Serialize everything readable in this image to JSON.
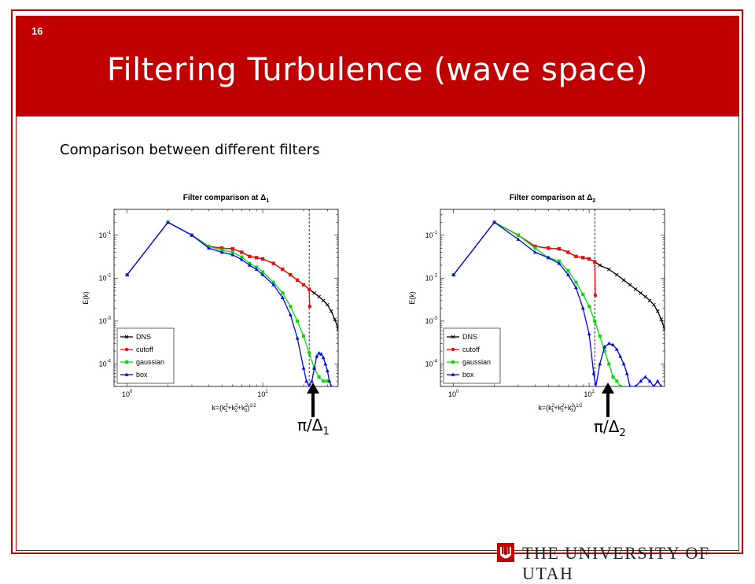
{
  "slide": {
    "number": "16",
    "title": "Filtering Turbulence (wave space)",
    "subtitle": "Comparison between different filters",
    "footer": "THE UNIVERSITY OF UTAH",
    "colors": {
      "brand_red": "#c00000",
      "dns": "#000000",
      "cutoff": "#ff0000",
      "gaussian": "#00dd00",
      "box": "#0000ff"
    }
  },
  "chart_data": [
    {
      "type": "line",
      "title": "Filter comparison at Δ",
      "title_sub": "1",
      "ylabel": "E(k)",
      "xlabel": "k=(k",
      "xlabel_full": "k=(k1^2+k2^2+k3^2)^1/2",
      "x_scale": "log",
      "y_scale": "log",
      "xlim": [
        0.8,
        36
      ],
      "ylim": [
        3e-05,
        0.4
      ],
      "x_ticks": [
        {
          "v": 1,
          "label": "10",
          "exp": "0"
        },
        {
          "v": 10,
          "label": "10",
          "exp": "1"
        }
      ],
      "y_ticks": [
        {
          "v": 0.1,
          "label": "10",
          "exp": "-1"
        },
        {
          "v": 0.01,
          "label": "10",
          "exp": "-2"
        },
        {
          "v": 0.001,
          "label": "10",
          "exp": "-3"
        },
        {
          "v": 0.0001,
          "label": "10",
          "exp": "-4"
        }
      ],
      "cutoff_k": 22,
      "legend_position": "bottom-left",
      "series": [
        {
          "name": "DNS",
          "color": "#000000",
          "marker": "x",
          "x": [
            1,
            2,
            3,
            4,
            5,
            6,
            7,
            8,
            9,
            10,
            12,
            14,
            16,
            18,
            20,
            22,
            24,
            26,
            28,
            30,
            32,
            34,
            36
          ],
          "y": [
            0.012,
            0.2,
            0.1,
            0.055,
            0.05,
            0.048,
            0.04,
            0.032,
            0.03,
            0.028,
            0.022,
            0.016,
            0.012,
            0.009,
            0.007,
            0.0055,
            0.0045,
            0.0037,
            0.003,
            0.0024,
            0.0017,
            0.0011,
            0.00065
          ]
        },
        {
          "name": "cutoff",
          "color": "#ff0000",
          "marker": "o",
          "x": [
            1,
            2,
            3,
            4,
            5,
            6,
            7,
            8,
            9,
            10,
            12,
            14,
            16,
            18,
            20,
            22,
            22.2
          ],
          "y": [
            0.012,
            0.2,
            0.1,
            0.055,
            0.05,
            0.048,
            0.04,
            0.032,
            0.03,
            0.028,
            0.022,
            0.016,
            0.012,
            0.009,
            0.007,
            0.0055,
            0.0022
          ]
        },
        {
          "name": "gaussian",
          "color": "#00dd00",
          "marker": "s",
          "x": [
            1,
            2,
            3,
            4,
            5,
            6,
            7,
            8,
            9,
            10,
            12,
            14,
            16,
            18,
            20,
            22,
            24,
            26,
            28,
            30
          ],
          "y": [
            0.012,
            0.2,
            0.1,
            0.055,
            0.045,
            0.04,
            0.031,
            0.022,
            0.018,
            0.014,
            0.008,
            0.0045,
            0.0022,
            0.001,
            0.00045,
            0.00018,
            8e-05,
            5e-05,
            4e-05,
            4e-05
          ]
        },
        {
          "name": "box",
          "color": "#0000ff",
          "marker": "^",
          "x": [
            1,
            2,
            3,
            4,
            5,
            6,
            7,
            8,
            9,
            10,
            12,
            14,
            16,
            18,
            20,
            21,
            22,
            23,
            24,
            25,
            26,
            27,
            28,
            29,
            30,
            31,
            32
          ],
          "y": [
            0.012,
            0.2,
            0.1,
            0.05,
            0.04,
            0.035,
            0.027,
            0.02,
            0.016,
            0.012,
            0.007,
            0.0035,
            0.0014,
            0.0004,
            8e-05,
            4e-05,
            3e-05,
            4e-05,
            8e-05,
            0.00015,
            0.00018,
            0.00017,
            0.00014,
            0.0001,
            7e-05,
            4e-05,
            3e-05
          ]
        }
      ]
    },
    {
      "type": "line",
      "title": "Filter comparison at Δ",
      "title_sub": "2",
      "ylabel": "E(k)",
      "xlabel": "k=(k",
      "xlabel_full": "k=(k1^2+k2^2+k3^2)^1/2",
      "x_scale": "log",
      "y_scale": "log",
      "xlim": [
        0.8,
        36
      ],
      "ylim": [
        3e-05,
        0.4
      ],
      "x_ticks": [
        {
          "v": 1,
          "label": "10",
          "exp": "0"
        },
        {
          "v": 10,
          "label": "10",
          "exp": "1"
        }
      ],
      "y_ticks": [
        {
          "v": 0.1,
          "label": "10",
          "exp": "-1"
        },
        {
          "v": 0.01,
          "label": "10",
          "exp": "-2"
        },
        {
          "v": 0.001,
          "label": "10",
          "exp": "-3"
        },
        {
          "v": 0.0001,
          "label": "10",
          "exp": "-4"
        }
      ],
      "cutoff_k": 11,
      "legend_position": "bottom-left",
      "series": [
        {
          "name": "DNS",
          "color": "#000000",
          "marker": "x",
          "x": [
            1,
            2,
            3,
            4,
            5,
            6,
            7,
            8,
            9,
            10,
            11,
            12,
            14,
            16,
            18,
            20,
            22,
            24,
            26,
            28,
            30,
            32,
            34,
            36
          ],
          "y": [
            0.012,
            0.2,
            0.1,
            0.055,
            0.05,
            0.048,
            0.04,
            0.032,
            0.03,
            0.028,
            0.024,
            0.02,
            0.016,
            0.012,
            0.009,
            0.007,
            0.0055,
            0.0045,
            0.0037,
            0.003,
            0.0024,
            0.0017,
            0.0011,
            0.00065
          ]
        },
        {
          "name": "cutoff",
          "color": "#ff0000",
          "marker": "o",
          "x": [
            1,
            2,
            3,
            4,
            5,
            6,
            7,
            8,
            9,
            10,
            11,
            11.1
          ],
          "y": [
            0.012,
            0.2,
            0.1,
            0.055,
            0.05,
            0.048,
            0.04,
            0.032,
            0.03,
            0.028,
            0.024,
            0.004
          ]
        },
        {
          "name": "gaussian",
          "color": "#00dd00",
          "marker": "s",
          "x": [
            1,
            2,
            3,
            4,
            5,
            6,
            7,
            8,
            9,
            10,
            11,
            12,
            13,
            14,
            15,
            16,
            17
          ],
          "y": [
            0.012,
            0.2,
            0.1,
            0.05,
            0.03,
            0.025,
            0.015,
            0.008,
            0.0042,
            0.0022,
            0.001,
            0.00045,
            0.0002,
            0.0001,
            5e-05,
            4e-05,
            3e-05
          ]
        },
        {
          "name": "box",
          "color": "#0000ff",
          "marker": "^",
          "x": [
            1,
            2,
            3,
            4,
            5,
            6,
            7,
            8,
            9,
            10,
            10.8,
            11.2,
            12,
            13,
            14,
            15,
            16,
            17,
            18,
            19,
            20,
            22,
            24,
            26,
            28,
            30,
            32,
            34
          ],
          "y": [
            0.012,
            0.2,
            0.08,
            0.04,
            0.03,
            0.022,
            0.012,
            0.006,
            0.002,
            0.0005,
            6e-05,
            3e-05,
            0.0001,
            0.00025,
            0.0003,
            0.00028,
            0.00022,
            0.00015,
            0.0001,
            6e-05,
            3e-05,
            3e-05,
            4e-05,
            5e-05,
            4e-05,
            3e-05,
            4e-05,
            3e-05
          ]
        }
      ]
    }
  ],
  "markers": [
    {
      "label": "π/Δ",
      "sub": "1"
    },
    {
      "label": "π/Δ",
      "sub": "2"
    }
  ]
}
